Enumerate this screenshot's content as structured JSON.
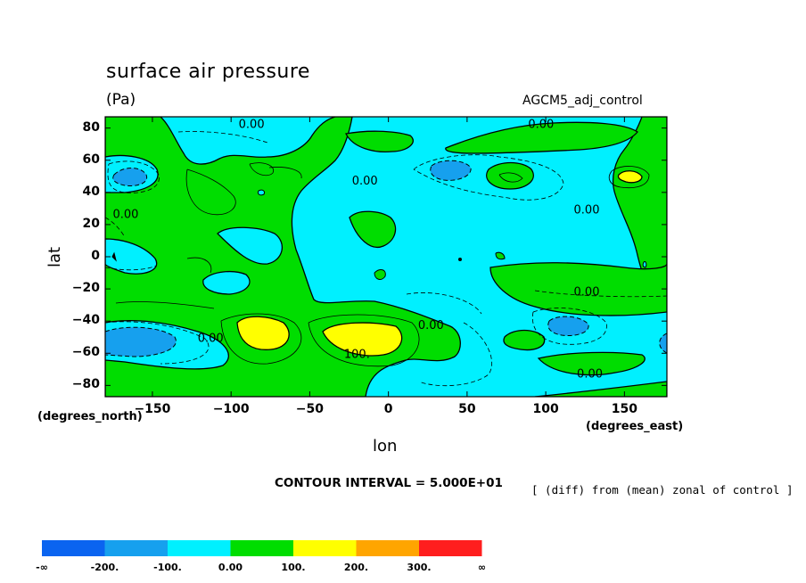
{
  "chart_data": {
    "type": "contour",
    "title": "surface air pressure",
    "units": "(Pa)",
    "run_label": "AGCM5_adj_control",
    "xlabel": "lon",
    "ylabel": "lat",
    "x_units": "(degrees_east)",
    "y_units": "(degrees_north)",
    "xlim": [
      -180,
      177
    ],
    "ylim": [
      -87,
      87
    ],
    "x_ticks": [
      -150,
      -100,
      -50,
      0,
      50,
      100,
      150
    ],
    "y_ticks": [
      80,
      60,
      40,
      20,
      0,
      -20,
      -40,
      -60,
      -80
    ],
    "contour_interval_text": "CONTOUR INTERVAL = 5.000E+01",
    "operation_note": "[ (diff) from (mean) zonal of control ]",
    "contour_labels": [
      {
        "text": "0.00",
        "lon": -87,
        "lat": 80
      },
      {
        "text": "0.00",
        "lon": 97,
        "lat": 80
      },
      {
        "text": "0.00",
        "lon": -15,
        "lat": 45
      },
      {
        "text": "0.00",
        "lon": -167,
        "lat": 24
      },
      {
        "text": "0.00",
        "lon": 126,
        "lat": 27
      },
      {
        "text": "0.00",
        "lon": 126,
        "lat": -24
      },
      {
        "text": "0.00",
        "lon": 27,
        "lat": -45
      },
      {
        "text": "0.00",
        "lon": -113,
        "lat": -53
      },
      {
        "text": "0.00",
        "lon": 128,
        "lat": -75
      },
      {
        "text": "100.",
        "lon": -20,
        "lat": -63
      }
    ],
    "legend": {
      "bins": [
        {
          "color": "#0a64f0",
          "range": [
            "-∞",
            "-200."
          ]
        },
        {
          "color": "#16a0ee",
          "range": [
            "-200.",
            "-100."
          ]
        },
        {
          "color": "#00f0ff",
          "range": [
            "-100.",
            "0.00"
          ]
        },
        {
          "color": "#00dd00",
          "range": [
            "0.00",
            "100."
          ]
        },
        {
          "color": "#ffff00",
          "range": [
            "100.",
            "200."
          ]
        },
        {
          "color": "#ffa500",
          "range": [
            "200.",
            "300."
          ]
        },
        {
          "color": "#ff1e1e",
          "range": [
            "300.",
            "∞"
          ]
        }
      ],
      "labels": [
        "-∞",
        "-200.",
        "-100.",
        "0.00",
        "100.",
        "200.",
        "300.",
        "∞"
      ]
    }
  }
}
